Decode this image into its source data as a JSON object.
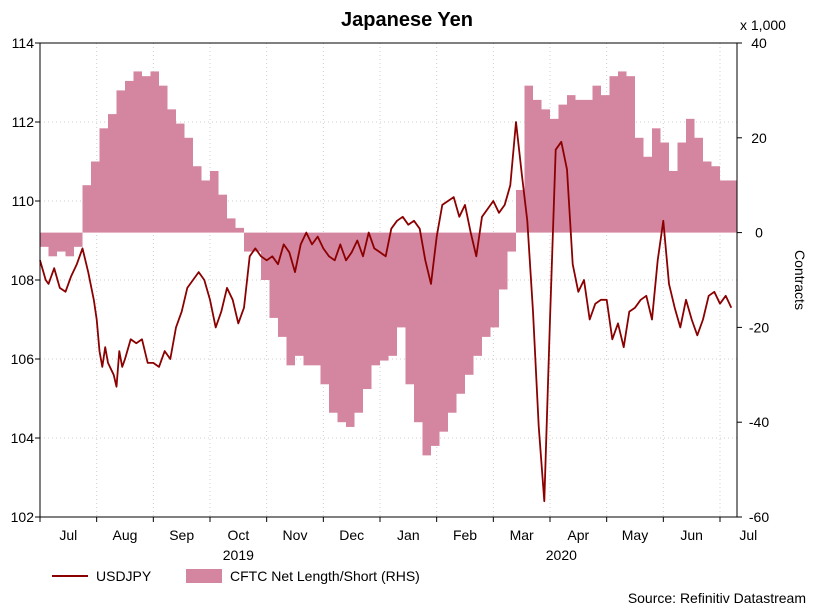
{
  "chart_data": {
    "type": "line",
    "title": "Japanese Yen",
    "source": "Source: Refinitiv Datastream",
    "y2_unit_label": "x 1,000",
    "y2label": "Contracts",
    "ylim": [
      102,
      114
    ],
    "yticks": [
      "102",
      "104",
      "106",
      "108",
      "110",
      "112",
      "114"
    ],
    "y2lim": [
      -60,
      40
    ],
    "y2ticks": [
      "-60",
      "-40",
      "-20",
      "0",
      "20",
      "40"
    ],
    "x_range": [
      6.0,
      18.3
    ],
    "month_ticks": [
      "Jul",
      "Aug",
      "Sep",
      "Oct",
      "Nov",
      "Dec",
      "Jan",
      "Feb",
      "Mar",
      "Apr",
      "May",
      "Jun",
      "Jul"
    ],
    "years": [
      "2019",
      "2020"
    ],
    "legend": {
      "line_label": "USDJPY",
      "area_label": "CFTC Net Length/Short (RHS)"
    },
    "colors": {
      "line": "#8b0000",
      "area": "#d4859f"
    },
    "series": [
      {
        "name": "USDJPY",
        "axis": "left",
        "x": [
          6.0,
          6.1,
          6.15,
          6.25,
          6.35,
          6.45,
          6.55,
          6.65,
          6.75,
          6.85,
          6.95,
          7.0,
          7.05,
          7.1,
          7.15,
          7.2,
          7.3,
          7.35,
          7.4,
          7.45,
          7.5,
          7.6,
          7.7,
          7.8,
          7.9,
          8.0,
          8.1,
          8.2,
          8.3,
          8.4,
          8.5,
          8.6,
          8.7,
          8.8,
          8.9,
          9.0,
          9.1,
          9.2,
          9.3,
          9.4,
          9.5,
          9.6,
          9.7,
          9.8,
          9.9,
          10.0,
          10.1,
          10.2,
          10.3,
          10.4,
          10.5,
          10.6,
          10.7,
          10.8,
          10.9,
          11.0,
          11.1,
          11.2,
          11.3,
          11.4,
          11.5,
          11.6,
          11.7,
          11.8,
          11.9,
          12.0,
          12.1,
          12.2,
          12.3,
          12.4,
          12.5,
          12.6,
          12.7,
          12.8,
          12.9,
          13.0,
          13.1,
          13.2,
          13.3,
          13.4,
          13.5,
          13.6,
          13.7,
          13.8,
          13.9,
          14.0,
          14.1,
          14.2,
          14.3,
          14.4,
          14.5,
          14.6,
          14.7,
          14.8,
          14.9,
          15.0,
          15.1,
          15.2,
          15.3,
          15.4,
          15.5,
          15.6,
          15.7,
          15.8,
          15.9,
          16.0,
          16.1,
          16.2,
          16.3,
          16.4,
          16.5,
          16.6,
          16.7,
          16.8,
          16.9,
          17.0,
          17.1,
          17.2,
          17.3,
          17.4,
          17.5,
          17.6,
          17.7,
          17.8,
          17.9,
          18.0,
          18.1,
          18.2
        ],
        "values": [
          108.5,
          108.0,
          107.9,
          108.3,
          107.8,
          107.7,
          108.1,
          108.4,
          108.8,
          108.2,
          107.5,
          107.0,
          106.2,
          105.8,
          106.3,
          105.9,
          105.6,
          105.3,
          106.2,
          105.8,
          106.0,
          106.5,
          106.4,
          106.5,
          105.9,
          105.9,
          105.8,
          106.2,
          106.0,
          106.8,
          107.2,
          107.8,
          108.0,
          108.2,
          108.0,
          107.5,
          106.8,
          107.2,
          107.8,
          107.5,
          106.9,
          107.3,
          108.6,
          108.8,
          108.6,
          108.5,
          108.6,
          108.4,
          108.9,
          108.7,
          108.2,
          108.9,
          109.2,
          108.9,
          109.1,
          108.8,
          108.6,
          108.5,
          108.9,
          108.5,
          108.7,
          109.0,
          108.6,
          109.2,
          108.8,
          108.7,
          108.6,
          109.3,
          109.5,
          109.6,
          109.4,
          109.5,
          109.3,
          108.5,
          107.9,
          109.1,
          109.9,
          110.0,
          110.1,
          109.6,
          109.9,
          109.2,
          108.6,
          109.6,
          109.8,
          110.0,
          109.7,
          109.9,
          110.4,
          112.0,
          110.7,
          109.5,
          107.2,
          104.3,
          102.4,
          107.0,
          111.3,
          111.5,
          110.8,
          108.4,
          107.7,
          108.0,
          107.0,
          107.4,
          107.5,
          107.5,
          106.5,
          106.9,
          106.3,
          107.2,
          107.3,
          107.5,
          107.6,
          107.0,
          108.5,
          109.5,
          107.9,
          107.3,
          106.8,
          107.5,
          107.0,
          106.6,
          107.0,
          107.6,
          107.7,
          107.4,
          107.6,
          107.3
        ],
        "note": "weekly approximation of daily series"
      },
      {
        "name": "CFTC Net Length/Short (RHS)",
        "axis": "right",
        "type": "area-step",
        "x": [
          6.0,
          6.15,
          6.3,
          6.45,
          6.6,
          6.75,
          6.9,
          7.05,
          7.2,
          7.35,
          7.5,
          7.65,
          7.8,
          7.95,
          8.1,
          8.25,
          8.4,
          8.55,
          8.7,
          8.85,
          9.0,
          9.15,
          9.3,
          9.45,
          9.6,
          9.75,
          9.9,
          10.05,
          10.2,
          10.35,
          10.5,
          10.65,
          10.8,
          10.95,
          11.1,
          11.25,
          11.4,
          11.55,
          11.7,
          11.85,
          12.0,
          12.15,
          12.3,
          12.45,
          12.6,
          12.75,
          12.9,
          13.05,
          13.2,
          13.35,
          13.5,
          13.65,
          13.8,
          13.95,
          14.1,
          14.25,
          14.4,
          14.55,
          14.7,
          14.85,
          15.0,
          15.15,
          15.3,
          15.45,
          15.6,
          15.75,
          15.9,
          16.05,
          16.2,
          16.35,
          16.5,
          16.65,
          16.8,
          16.95,
          17.1,
          17.25,
          17.4,
          17.55,
          17.7,
          17.85,
          18.0
        ],
        "values": [
          -3,
          -5,
          -4,
          -5,
          -3,
          10,
          15,
          22,
          25,
          30,
          32,
          34,
          33,
          34,
          31,
          26,
          23,
          20,
          14,
          11,
          13,
          8,
          3,
          1,
          -4,
          -4,
          -10,
          -18,
          -22,
          -28,
          -26,
          -28,
          -28,
          -32,
          -38,
          -40,
          -41,
          -38,
          -33,
          -28,
          -27,
          -26,
          -20,
          -32,
          -40,
          -47,
          -45,
          -42,
          -38,
          -34,
          -30,
          -26,
          -22,
          -20,
          -12,
          -4,
          9,
          31,
          28,
          26,
          24,
          27,
          29,
          28,
          28,
          31,
          29,
          33,
          34,
          33,
          20,
          16,
          22,
          19,
          13,
          19,
          24,
          20,
          15,
          14,
          11
        ],
        "note": "step fill relative to zero"
      }
    ]
  }
}
